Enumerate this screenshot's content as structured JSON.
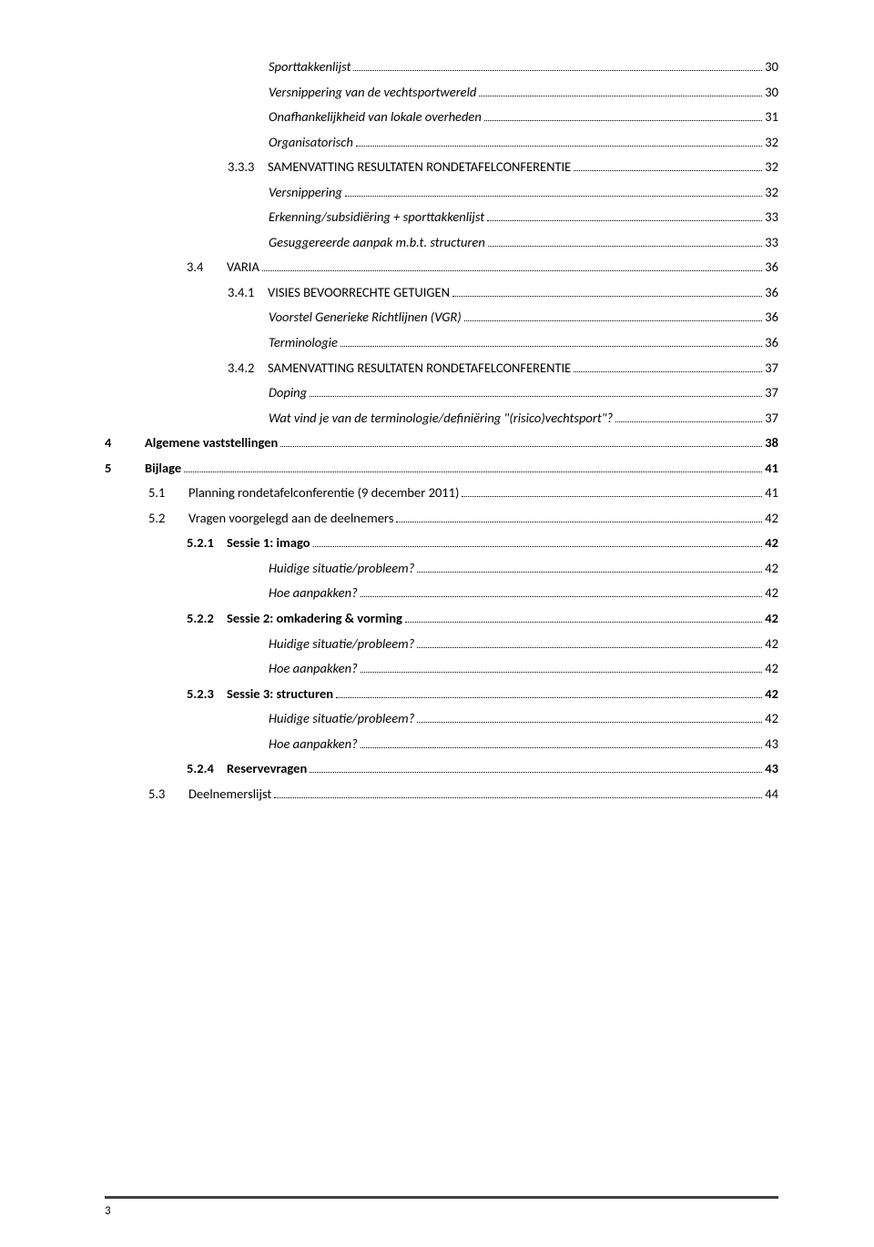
{
  "entries": [
    {
      "level": "lv5",
      "italic": true,
      "bold": false,
      "num": "",
      "text": "Sporttakkenlijst",
      "page": "30"
    },
    {
      "level": "lv5",
      "italic": true,
      "bold": false,
      "num": "",
      "text": "Versnippering van de vechtsportwereld",
      "page": "30"
    },
    {
      "level": "lv5",
      "italic": true,
      "bold": false,
      "num": "",
      "text": "Onafhankelijkheid van lokale overheden",
      "page": "31"
    },
    {
      "level": "lv5",
      "italic": true,
      "bold": false,
      "num": "",
      "text": "Organisatorisch",
      "page": "32"
    },
    {
      "level": "lv4",
      "italic": false,
      "bold": false,
      "num": "3.3.3",
      "text": "SAMENVATTING RESULTATEN RONDETAFELCONFERENTIE",
      "page": "32"
    },
    {
      "level": "lv5",
      "italic": true,
      "bold": false,
      "num": "",
      "text": "Versnippering",
      "page": "32"
    },
    {
      "level": "lv5",
      "italic": true,
      "bold": false,
      "num": "",
      "text": "Erkenning/subsidiëring + sporttakkenlijst",
      "page": "33"
    },
    {
      "level": "lv5",
      "italic": true,
      "bold": false,
      "num": "",
      "text": "Gesuggereerde aanpak m.b.t. structuren",
      "page": "33"
    },
    {
      "level": "lv2",
      "italic": false,
      "bold": false,
      "num": "3.4",
      "text": "VARIA",
      "page": "36"
    },
    {
      "level": "lv4",
      "italic": false,
      "bold": false,
      "num": "3.4.1",
      "text": "VISIES BEVOORRECHTE GETUIGEN",
      "page": "36"
    },
    {
      "level": "lv5",
      "italic": true,
      "bold": false,
      "num": "",
      "text": "Voorstel Generieke Richtlijnen (VGR)",
      "page": "36"
    },
    {
      "level": "lv5",
      "italic": true,
      "bold": false,
      "num": "",
      "text": "Terminologie",
      "page": "36"
    },
    {
      "level": "lv4",
      "italic": false,
      "bold": false,
      "num": "3.4.2",
      "text": "SAMENVATTING RESULTATEN RONDETAFELCONFERENTIE",
      "page": "37"
    },
    {
      "level": "lv5",
      "italic": true,
      "bold": false,
      "num": "",
      "text": "Doping",
      "page": "37"
    },
    {
      "level": "lv5",
      "italic": true,
      "bold": false,
      "num": "",
      "text": "Wat vind je van de terminologie/definiëring \"(risico)vechtsport\"?",
      "page": "37"
    },
    {
      "level": "lv0",
      "italic": false,
      "bold": true,
      "num": "4",
      "text": "Algemene vaststellingen",
      "page": "38"
    },
    {
      "level": "lv0",
      "italic": false,
      "bold": true,
      "num": "5",
      "text": "Bijlage",
      "page": "41"
    },
    {
      "level": "lv1",
      "italic": false,
      "bold": false,
      "num": "5.1",
      "text": "Planning rondetafelconferentie (9 december 2011)",
      "page": "41"
    },
    {
      "level": "lv1",
      "italic": false,
      "bold": false,
      "num": "5.2",
      "text": "Vragen voorgelegd aan de deelnemers",
      "page": "42"
    },
    {
      "level": "lv3",
      "italic": false,
      "bold": true,
      "num": "5.2.1",
      "text": "Sessie 1: imago",
      "page": "42"
    },
    {
      "level": "lv5",
      "italic": true,
      "bold": false,
      "num": "",
      "text": "Huidige situatie/probleem?",
      "page": "42"
    },
    {
      "level": "lv5",
      "italic": true,
      "bold": false,
      "num": "",
      "text": "Hoe aanpakken?",
      "page": "42"
    },
    {
      "level": "lv3",
      "italic": false,
      "bold": true,
      "num": "5.2.2",
      "text": "Sessie 2: omkadering & vorming",
      "page": "42"
    },
    {
      "level": "lv5",
      "italic": true,
      "bold": false,
      "num": "",
      "text": "Huidige situatie/probleem?",
      "page": "42"
    },
    {
      "level": "lv5",
      "italic": true,
      "bold": false,
      "num": "",
      "text": "Hoe aanpakken?",
      "page": "42"
    },
    {
      "level": "lv3",
      "italic": false,
      "bold": true,
      "num": "5.2.3",
      "text": "Sessie 3: structuren",
      "page": "42"
    },
    {
      "level": "lv5",
      "italic": true,
      "bold": false,
      "num": "",
      "text": "Huidige situatie/probleem?",
      "page": "42"
    },
    {
      "level": "lv5",
      "italic": true,
      "bold": false,
      "num": "",
      "text": "Hoe aanpakken?",
      "page": "43"
    },
    {
      "level": "lv3",
      "italic": false,
      "bold": true,
      "num": "5.2.4",
      "text": "Reservevragen",
      "page": "43"
    },
    {
      "level": "lv1",
      "italic": false,
      "bold": false,
      "num": "5.3",
      "text": "Deelnemerslijst",
      "page": "44"
    }
  ],
  "page_number": "3"
}
